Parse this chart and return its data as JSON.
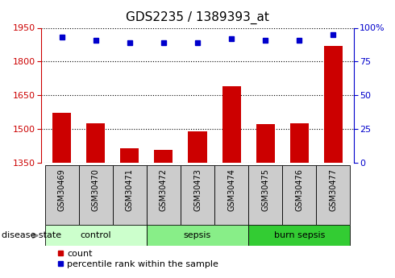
{
  "title": "GDS2235 / 1389393_at",
  "samples": [
    "GSM30469",
    "GSM30470",
    "GSM30471",
    "GSM30472",
    "GSM30473",
    "GSM30474",
    "GSM30475",
    "GSM30476",
    "GSM30477"
  ],
  "counts": [
    1570,
    1525,
    1415,
    1405,
    1490,
    1690,
    1520,
    1525,
    1870
  ],
  "percentiles": [
    93,
    91,
    89,
    89,
    89,
    92,
    91,
    91,
    95
  ],
  "ylim_left": [
    1350,
    1950
  ],
  "ylim_right": [
    0,
    100
  ],
  "yticks_left": [
    1350,
    1500,
    1650,
    1800,
    1950
  ],
  "yticks_right": [
    0,
    25,
    50,
    75,
    100
  ],
  "bar_color": "#cc0000",
  "dot_color": "#0000cc",
  "groups": [
    {
      "label": "control",
      "span": [
        0,
        2
      ],
      "color": "#ccffcc"
    },
    {
      "label": "sepsis",
      "span": [
        3,
        5
      ],
      "color": "#88ee88"
    },
    {
      "label": "burn sepsis",
      "span": [
        6,
        8
      ],
      "color": "#33cc33"
    }
  ],
  "disease_state_label": "disease state",
  "legend_count_label": "count",
  "legend_percentile_label": "percentile rank within the sample",
  "sample_box_color": "#cccccc",
  "bar_width": 0.55
}
